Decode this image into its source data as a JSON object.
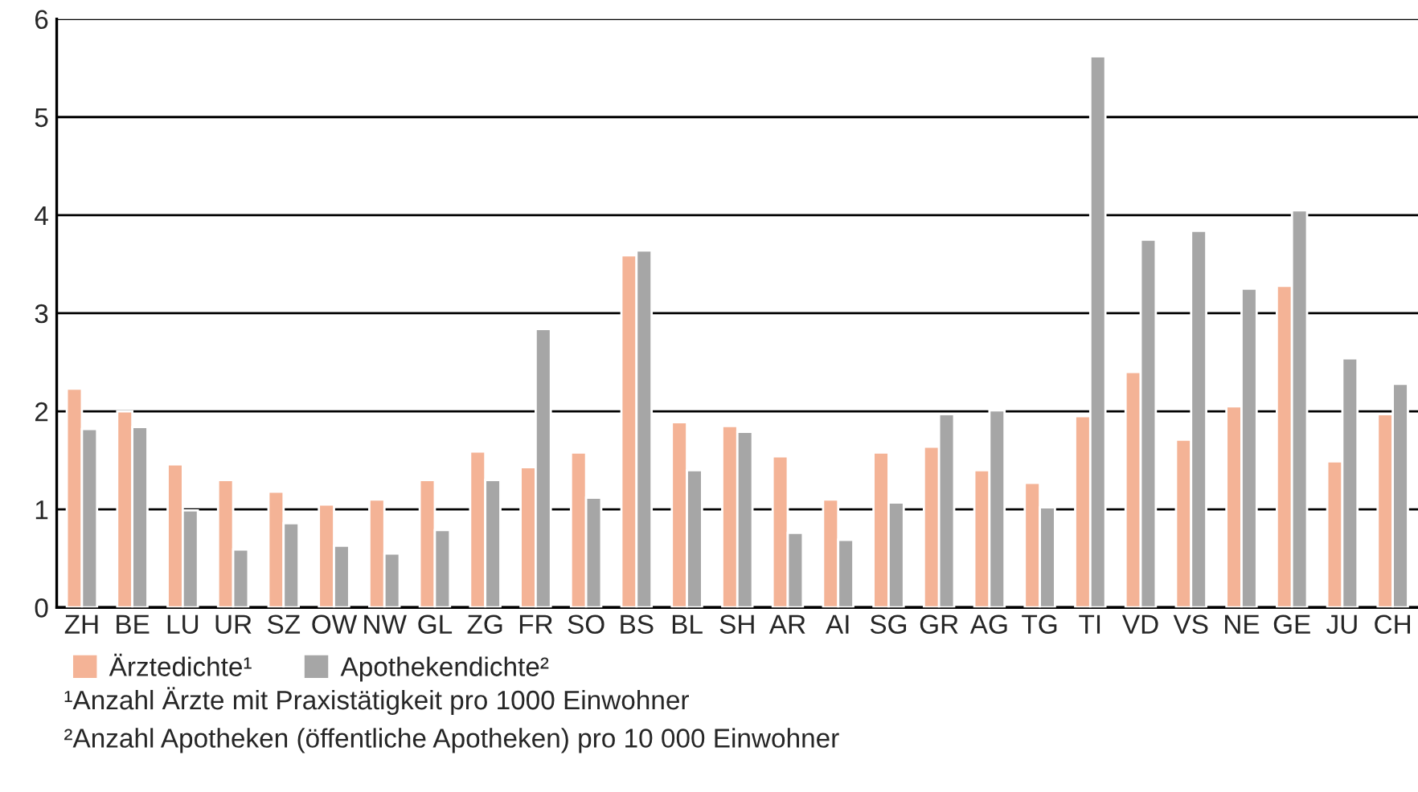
{
  "chart_data": {
    "type": "bar",
    "categories": [
      "ZH",
      "BE",
      "LU",
      "UR",
      "SZ",
      "OW",
      "NW",
      "GL",
      "ZG",
      "FR",
      "SO",
      "BS",
      "BL",
      "SH",
      "AR",
      "AI",
      "SG",
      "GR",
      "AG",
      "TG",
      "TI",
      "VD",
      "VS",
      "NE",
      "GE",
      "JU",
      "CH"
    ],
    "series": [
      {
        "name": "Ärztedichte¹",
        "color": "#f4b396",
        "values": [
          2.23,
          2.0,
          1.46,
          1.3,
          1.18,
          1.05,
          1.1,
          1.3,
          1.59,
          1.43,
          1.58,
          3.59,
          1.89,
          1.85,
          1.54,
          1.1,
          1.58,
          1.64,
          1.4,
          1.27,
          1.95,
          2.4,
          1.71,
          2.05,
          3.28,
          1.49,
          1.97
        ]
      },
      {
        "name": "Apothekendichte²",
        "color": "#a6a6a6",
        "values": [
          1.82,
          1.84,
          0.99,
          0.59,
          0.86,
          0.63,
          0.55,
          0.79,
          1.3,
          2.84,
          1.12,
          3.64,
          1.4,
          1.79,
          0.76,
          0.69,
          1.07,
          1.97,
          2.01,
          1.02,
          5.62,
          3.75,
          3.84,
          3.25,
          4.05,
          2.54,
          2.28
        ]
      }
    ],
    "ylim": [
      0,
      6
    ],
    "yticks": [
      0,
      1,
      2,
      3,
      4,
      5,
      6
    ],
    "grid": "y",
    "legend": "bottom left",
    "annotations": [
      "¹Anzahl Ärzte mit Praxistätigkeit pro 1000 Einwohner",
      "²Anzahl Apotheken (öffentliche Apotheken) pro 10 000 Einwohner"
    ]
  }
}
